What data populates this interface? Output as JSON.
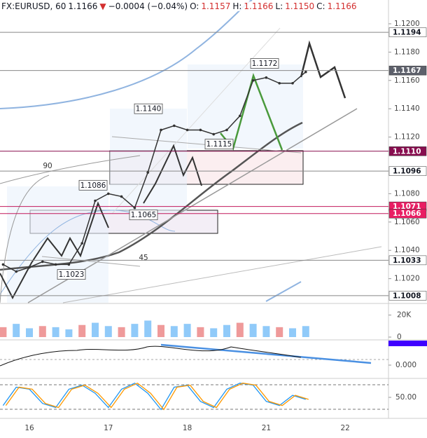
{
  "header": {
    "items": [
      {
        "text": "FX:EURUSD, 60",
        "color": "#131722"
      },
      {
        "text": "1.1166",
        "color": "#131722"
      },
      {
        "text": "▼",
        "color": "#d32f2f"
      },
      {
        "text": "−0.0004 (−0.04%)",
        "color": "#131722"
      },
      {
        "text": "O:",
        "color": "#131722"
      },
      {
        "text": "1.1157",
        "color": "#d32f2f"
      },
      {
        "text": "H:",
        "color": "#131722"
      },
      {
        "text": "1.1166",
        "color": "#d32f2f"
      },
      {
        "text": "L:",
        "color": "#131722"
      },
      {
        "text": "1.1150",
        "color": "#d32f2f"
      },
      {
        "text": "C:",
        "color": "#131722"
      },
      {
        "text": "1.1166",
        "color": "#d32f2f"
      }
    ]
  },
  "chart_data": {
    "type": "line",
    "categories": [
      null,
      null,
      "16",
      null,
      null,
      null,
      null,
      null,
      "17",
      null,
      null,
      null,
      null,
      null,
      "18",
      null,
      null,
      null,
      null,
      null,
      "21",
      null,
      null,
      null,
      null,
      null,
      "22",
      null
    ],
    "series": [
      {
        "name": "EURUSD",
        "color": "#333333",
        "values": [
          1.103,
          1.1025,
          1.1028,
          1.1032,
          1.103,
          1.103,
          1.1045,
          1.1075,
          1.108,
          1.1078,
          1.107,
          1.1095,
          1.1125,
          1.1128,
          1.1125,
          1.1125,
          1.1122,
          1.1125,
          1.1135,
          1.116,
          1.1162,
          1.1158,
          1.1158,
          1.1166,
          null,
          null,
          null,
          null
        ]
      }
    ],
    "ylim": [
      1.10025,
      1.12069
    ],
    "yticks": [
      {
        "value": 1.12,
        "label": "1.1200"
      },
      {
        "value": 1.118,
        "label": "1.1180"
      },
      {
        "value": 1.116,
        "label": "1.1160"
      },
      {
        "value": 1.114,
        "label": "1.1140"
      },
      {
        "value": 1.112,
        "label": "1.1120"
      },
      {
        "value": 1.108,
        "label": "1.1080"
      },
      {
        "value": 1.106,
        "label": "1.1060"
      },
      {
        "value": 1.104,
        "label": "1.1040"
      },
      {
        "value": 1.102,
        "label": "1.1020"
      }
    ],
    "levels": [
      {
        "value": 1.1194,
        "label": "1.1194",
        "color": "#ffffff",
        "text_color": "#131722",
        "line": "#888888"
      },
      {
        "value": 1.1167,
        "label": "1.1167",
        "color": "#5d606b",
        "text_color": "#ffffff",
        "line": "#888888"
      },
      {
        "value": 1.111,
        "label": "1.1110",
        "color": "#880e4f",
        "text_color": "#ffffff",
        "line": "#880e4f"
      },
      {
        "value": 1.1096,
        "label": "1.1096",
        "color": "#ffffff",
        "text_color": "#131722",
        "line": "#888888"
      },
      {
        "value": 1.1071,
        "label": "1.1071",
        "color": "#e91e63",
        "text_color": "#ffffff",
        "line": "#c2185b"
      },
      {
        "value": 1.1066,
        "label": "1.1066",
        "color": "#e91e63",
        "text_color": "#ffffff",
        "line": "#c2185b"
      },
      {
        "value": 1.1033,
        "label": "1.1033",
        "color": "#ffffff",
        "text_color": "#131722",
        "line": "#888888"
      },
      {
        "value": 1.1008,
        "label": "1.1008",
        "color": "#ffffff",
        "text_color": "#131722",
        "line": "#888888"
      }
    ],
    "annotations": [
      {
        "value": 1.1172,
        "label": "1.1172"
      },
      {
        "value": 1.114,
        "label": "1.1140"
      },
      {
        "value": 1.1086,
        "label": "1.1086"
      },
      {
        "value": 1.1115,
        "label": "1.1115"
      },
      {
        "value": 1.1065,
        "label": "1.1065"
      },
      {
        "value": 1.1023,
        "label": "1.1023"
      },
      90,
      45
    ],
    "volume": {
      "values": [
        9,
        12,
        8,
        10,
        9,
        7,
        11,
        13,
        10,
        9,
        12,
        15,
        11,
        10,
        12,
        9,
        8,
        11,
        13,
        12,
        10,
        9,
        8,
        10,
        null,
        null,
        null,
        null
      ],
      "colors": [
        "#ef9a9a",
        "#90caf9"
      ],
      "ylim": [
        0,
        28
      ],
      "yticks": [
        {
          "value": 20,
          "label": "20K"
        },
        0
      ]
    },
    "macd": {
      "yticks": [
        {
          "value": 0,
          "label": "0.000"
        }
      ]
    },
    "stoch": {
      "values": [
        30,
        75,
        70,
        35,
        25,
        70,
        80,
        60,
        25,
        70,
        85,
        60,
        20,
        75,
        80,
        40,
        25,
        70,
        85,
        80,
        40,
        30,
        55,
        45,
        null,
        null,
        null,
        null
      ],
      "colors": [
        "#2196f3",
        "#ff9800"
      ],
      "ylim": [
        0,
        100
      ],
      "yticks": [
        {
          "value": 50,
          "label": "50.00"
        }
      ]
    }
  }
}
